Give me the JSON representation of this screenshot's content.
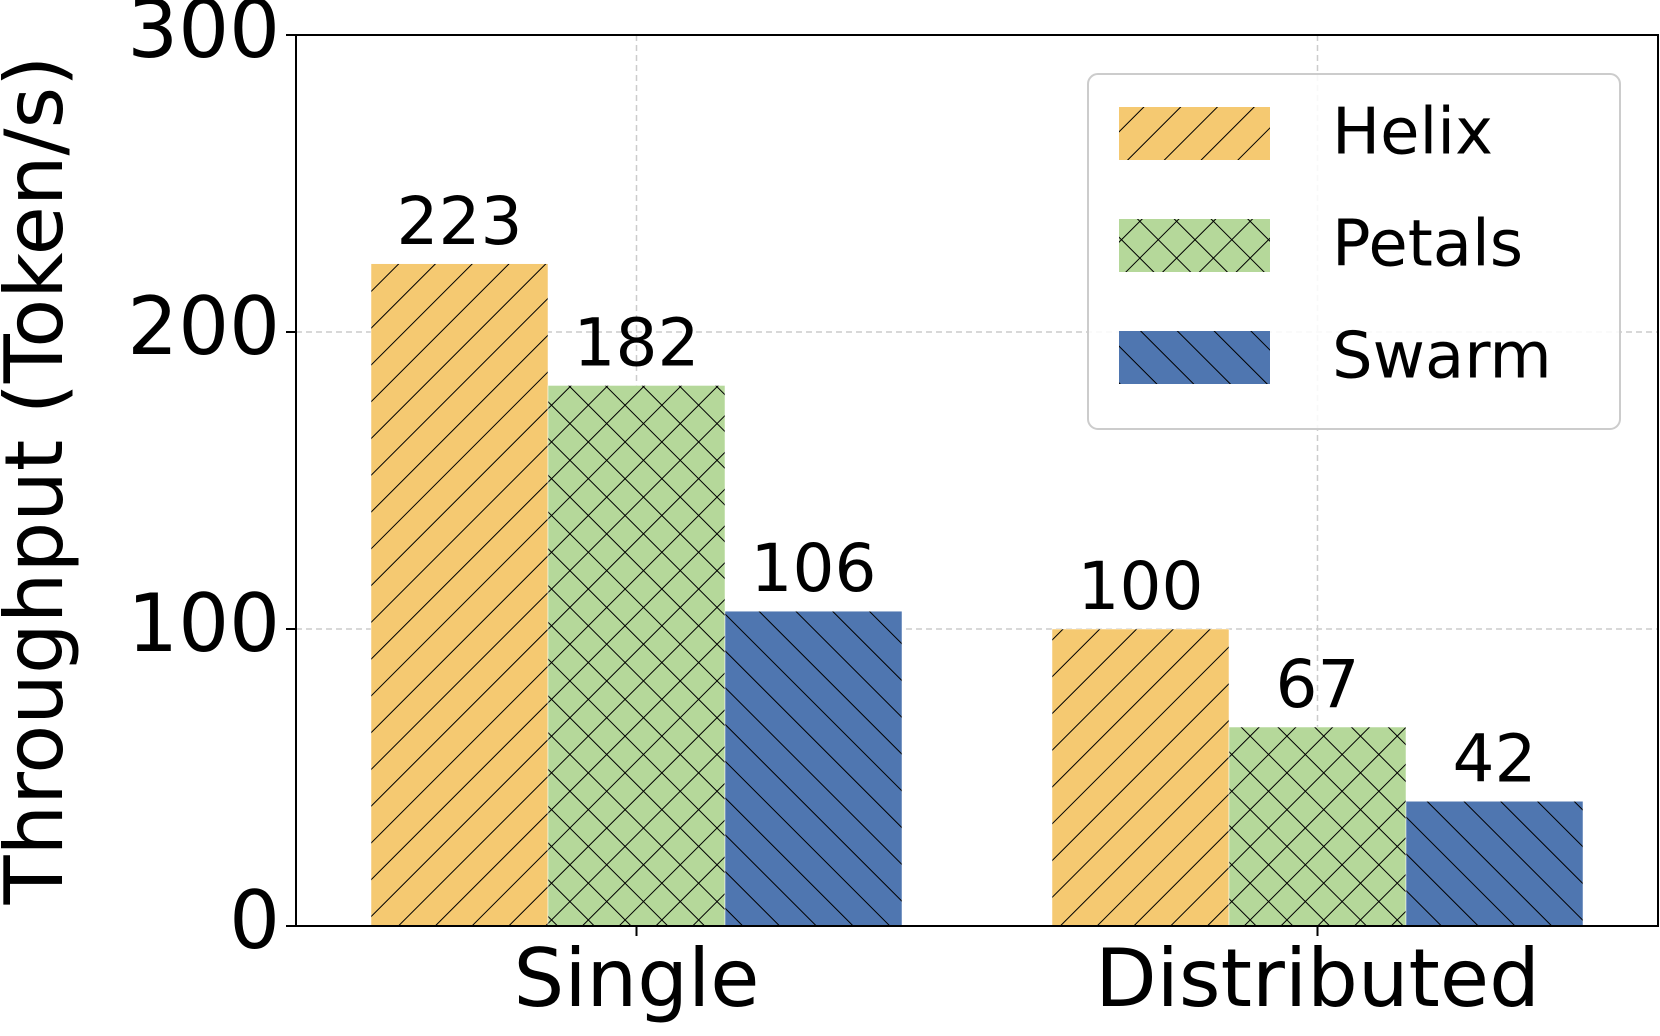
{
  "chart_data": {
    "type": "bar",
    "categories": [
      "Single",
      "Distributed"
    ],
    "series": [
      {
        "name": "Helix",
        "color": "#f5c971",
        "hatch": "/",
        "values": [
          223,
          100
        ]
      },
      {
        "name": "Petals",
        "color": "#b5d89a",
        "hatch": "x",
        "values": [
          182,
          67
        ]
      },
      {
        "name": "Swarm",
        "color": "#4f76b0",
        "hatch": "\\",
        "values": [
          106,
          42
        ]
      }
    ],
    "y_label": "Throughput (Token/s)",
    "ylim": [
      0,
      300
    ],
    "yticks": [
      0,
      100,
      200,
      300
    ],
    "grid": true,
    "legend": "upper right"
  }
}
